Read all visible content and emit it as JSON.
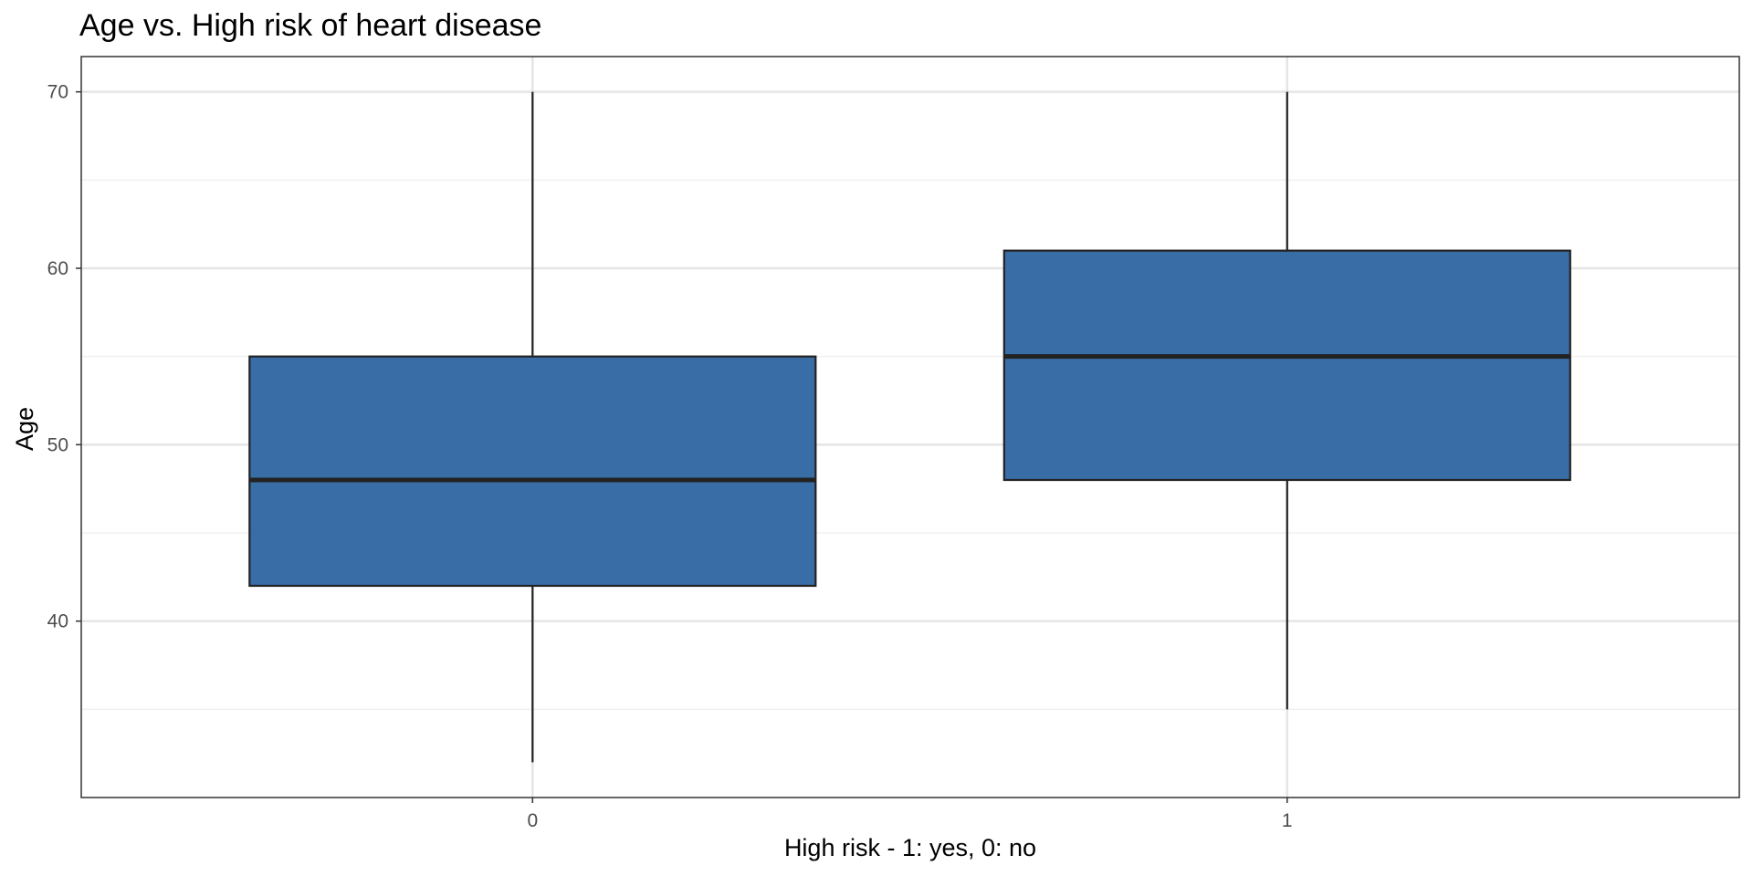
{
  "chart_data": {
    "type": "boxplot",
    "title": "Age vs. High risk of heart disease",
    "xlabel": "High risk - 1: yes, 0: no",
    "ylabel": "Age",
    "ylim": [
      30,
      72
    ],
    "y_ticks": [
      40,
      50,
      60,
      70
    ],
    "grid": true,
    "categories": [
      "0",
      "1"
    ],
    "boxes": [
      {
        "category": "0",
        "min": 32,
        "q1": 42,
        "median": 48,
        "q3": 55,
        "max": 70
      },
      {
        "category": "1",
        "min": 35,
        "q1": 48,
        "median": 55,
        "q3": 61,
        "max": 70
      }
    ],
    "colors": {
      "box_fill": "#396DA6",
      "box_stroke": "#222222",
      "grid_major": "#E5E5E5",
      "grid_minor": "#F0F0F0",
      "panel_border": "#333333"
    }
  }
}
